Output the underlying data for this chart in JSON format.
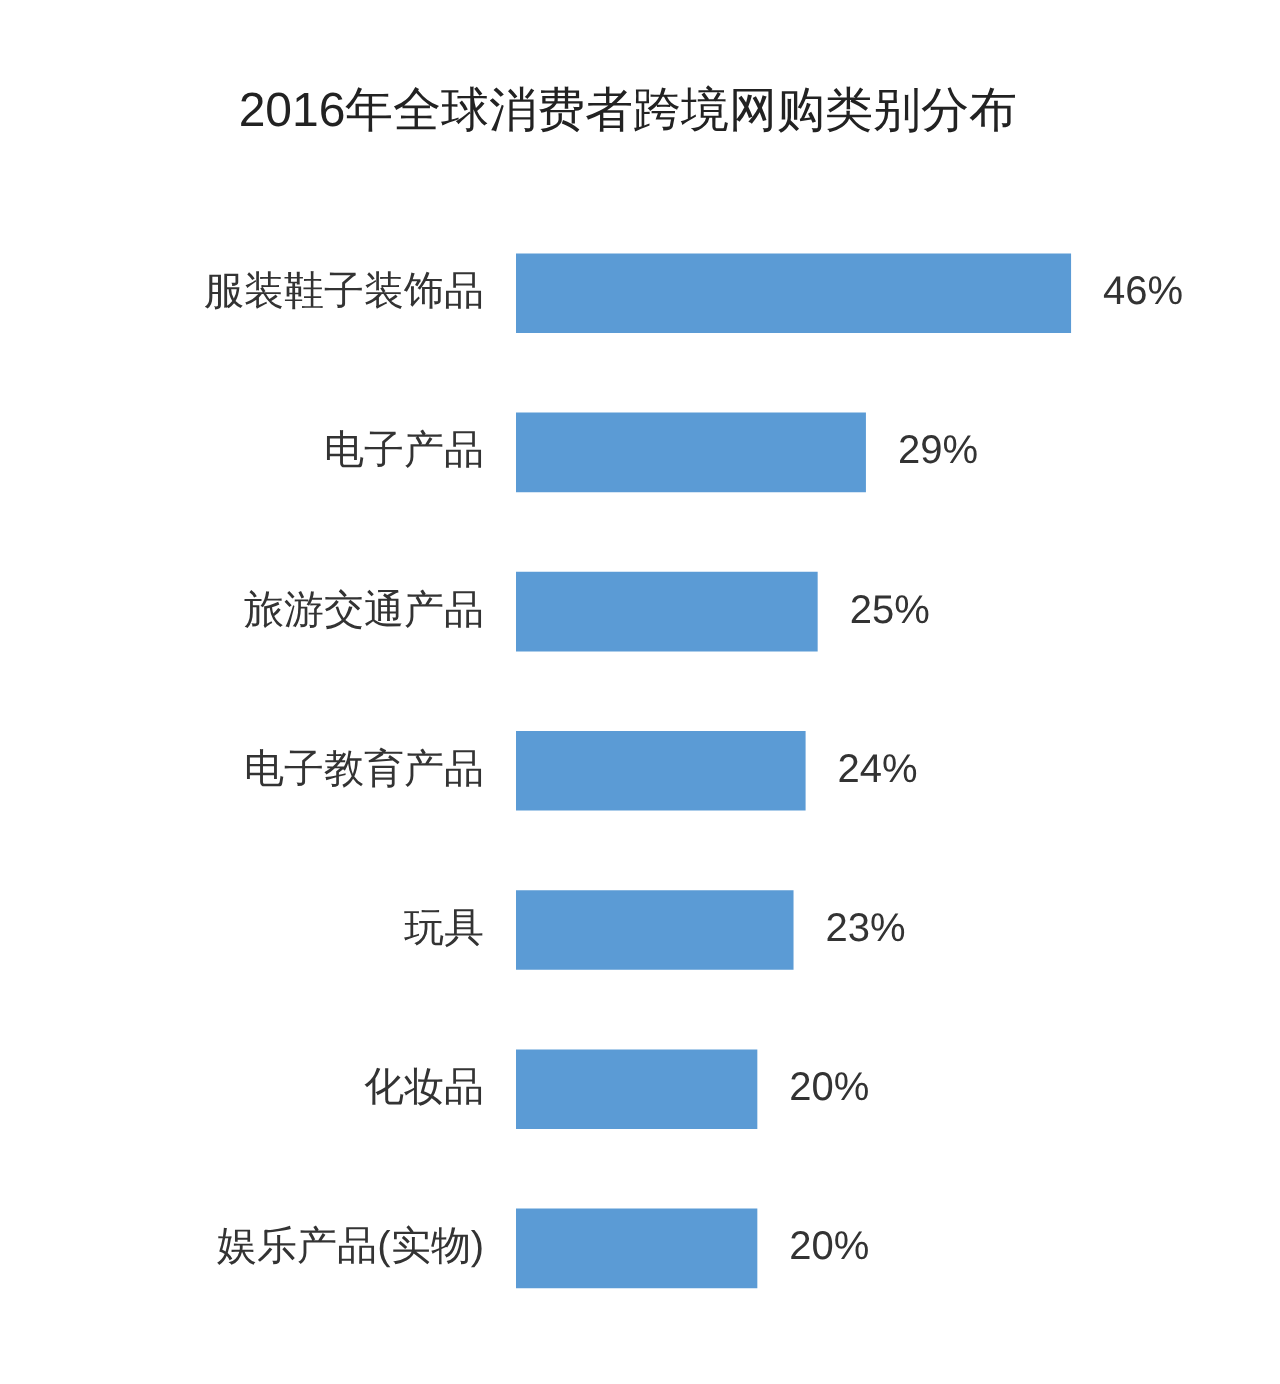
{
  "chart_data": {
    "type": "bar",
    "orientation": "horizontal",
    "title": "2016年全球消费者跨境网购类别分布",
    "categories": [
      "服装鞋子装饰品",
      "电子产品",
      "旅游交通产品",
      "电子教育产品",
      "玩具",
      "化妆品",
      "娱乐产品(实物)"
    ],
    "values": [
      46,
      29,
      25,
      24,
      23,
      20,
      20
    ],
    "value_labels": [
      "46%",
      "29%",
      "25%",
      "24%",
      "23%",
      "20%",
      "20%"
    ],
    "color": "#5b9bd5",
    "tick_labels": "y",
    "grid": false,
    "legend": false
  }
}
